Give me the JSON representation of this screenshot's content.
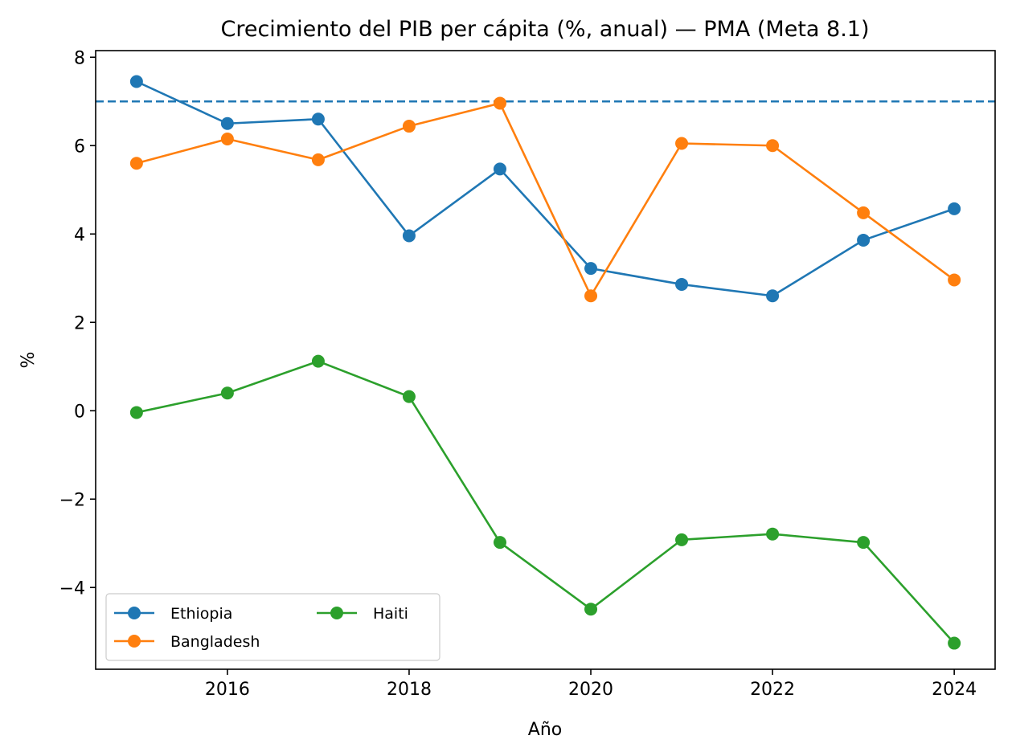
{
  "chart_data": {
    "type": "line",
    "title": "Crecimiento del PIB per cápita (%, anual) — PMA (Meta 8.1)",
    "xlabel": "Año",
    "ylabel": "%",
    "x": [
      2015,
      2016,
      2017,
      2018,
      2019,
      2020,
      2021,
      2022,
      2023,
      2024
    ],
    "xlim": [
      2014.55,
      2024.45
    ],
    "ylim": [
      -5.85,
      8.15
    ],
    "xticks": [
      2016,
      2018,
      2020,
      2022,
      2024
    ],
    "xtick_labels": [
      "2016",
      "2018",
      "2020",
      "2022",
      "2024"
    ],
    "yticks": [
      -4,
      -2,
      0,
      2,
      4,
      6,
      8
    ],
    "ytick_labels": [
      "−4",
      "−2",
      "0",
      "2",
      "4",
      "6",
      "8"
    ],
    "grid": false,
    "legend_position": "lower-left",
    "reference_line": {
      "y": 7.0,
      "style": "dashed",
      "color": "#1f77b4"
    },
    "series": [
      {
        "name": "Ethiopia",
        "color": "#1f77b4",
        "values": [
          7.45,
          6.5,
          6.6,
          3.96,
          5.47,
          3.22,
          2.86,
          2.6,
          3.86,
          4.57
        ]
      },
      {
        "name": "Bangladesh",
        "color": "#ff7f0e",
        "values": [
          5.6,
          6.15,
          5.68,
          6.44,
          6.96,
          2.6,
          6.05,
          6.0,
          4.48,
          2.96
        ]
      },
      {
        "name": "Haiti",
        "color": "#2ca02c",
        "values": [
          -0.04,
          0.4,
          1.12,
          0.32,
          -2.98,
          -4.49,
          -2.92,
          -2.79,
          -2.98,
          -5.26
        ]
      }
    ]
  }
}
